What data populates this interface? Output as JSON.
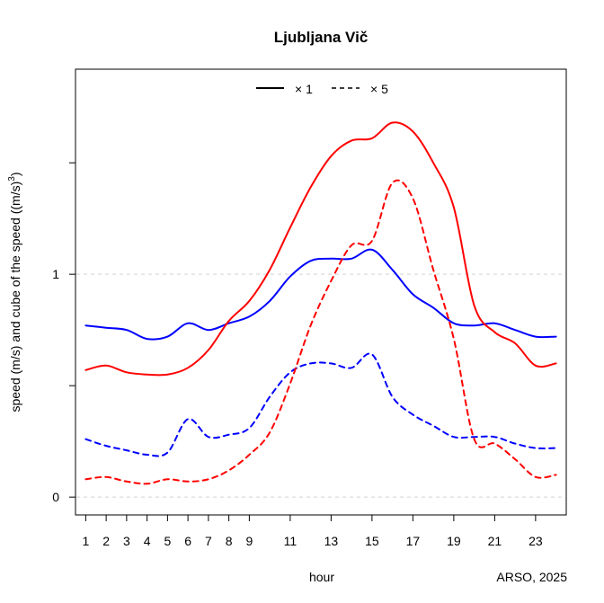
{
  "chart_data": {
    "type": "line",
    "title": "Ljubljana Vič",
    "xlabel": "hour",
    "ylabel": "speed (m/s) and cube of the speed ((m/s)",
    "ylabel_superscript": "3",
    "ylabel_close": ")",
    "source": "ARSO, 2025",
    "xlim": [
      0.5,
      24.5
    ],
    "ylim": [
      -0.08,
      1.92
    ],
    "x_ticks": [
      1,
      2,
      3,
      4,
      5,
      6,
      7,
      8,
      9,
      11,
      13,
      15,
      17,
      19,
      21,
      23
    ],
    "y_ticks": [
      0,
      0.5,
      1,
      1.5
    ],
    "y_tick_labels": [
      "0",
      "",
      "1",
      ""
    ],
    "grid_y": [
      0,
      1
    ],
    "legend": {
      "placement": "top",
      "entries": [
        {
          "label": "× 1",
          "style": "solid"
        },
        {
          "label": "× 5",
          "style": "dashed"
        }
      ]
    },
    "x": [
      1,
      2,
      3,
      4,
      5,
      6,
      7,
      8,
      9,
      10,
      11,
      12,
      13,
      14,
      15,
      16,
      17,
      18,
      19,
      20,
      21,
      22,
      23,
      24
    ],
    "series": [
      {
        "color": "#0000ff",
        "style": "solid",
        "values": [
          0.77,
          0.76,
          0.75,
          0.71,
          0.72,
          0.78,
          0.75,
          0.78,
          0.81,
          0.88,
          0.99,
          1.06,
          1.07,
          1.07,
          1.11,
          1.02,
          0.91,
          0.85,
          0.78,
          0.77,
          0.78,
          0.75,
          0.72,
          0.72
        ]
      },
      {
        "color": "#ff0000",
        "style": "solid",
        "values": [
          0.57,
          0.59,
          0.56,
          0.55,
          0.55,
          0.58,
          0.66,
          0.79,
          0.88,
          1.02,
          1.21,
          1.39,
          1.53,
          1.6,
          1.61,
          1.68,
          1.64,
          1.5,
          1.3,
          0.86,
          0.74,
          0.69,
          0.59,
          0.6
        ]
      },
      {
        "color": "#0000ff",
        "style": "dashed",
        "values": [
          0.26,
          0.23,
          0.21,
          0.19,
          0.2,
          0.35,
          0.27,
          0.28,
          0.31,
          0.45,
          0.56,
          0.6,
          0.6,
          0.58,
          0.64,
          0.45,
          0.37,
          0.32,
          0.27,
          0.27,
          0.27,
          0.24,
          0.22,
          0.22
        ]
      },
      {
        "color": "#ff0000",
        "style": "dashed",
        "values": [
          0.08,
          0.09,
          0.07,
          0.06,
          0.08,
          0.07,
          0.08,
          0.12,
          0.19,
          0.29,
          0.51,
          0.77,
          0.97,
          1.13,
          1.15,
          1.41,
          1.34,
          1.02,
          0.71,
          0.26,
          0.24,
          0.17,
          0.09,
          0.1
        ]
      }
    ]
  }
}
